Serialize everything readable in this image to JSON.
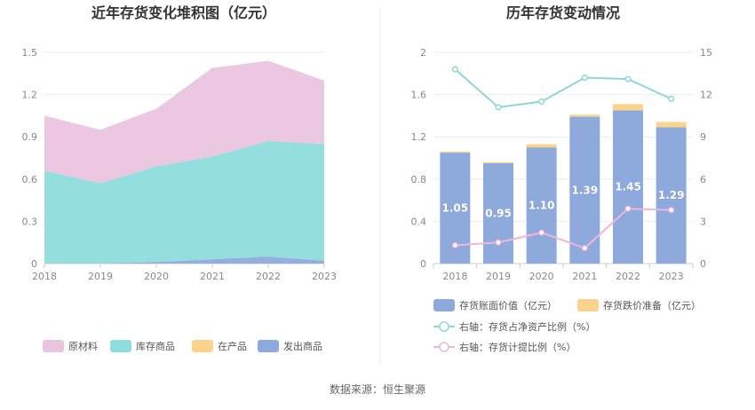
{
  "source": "数据来源：恒生聚源",
  "chart_data": [
    {
      "type": "area",
      "title": "近年存货变化堆积图（亿元）",
      "x": [
        "2018",
        "2019",
        "2020",
        "2021",
        "2022",
        "2023"
      ],
      "ylim": [
        0,
        1.5
      ],
      "yticks": [
        "0",
        "0.3",
        "0.6",
        "0.9",
        "1.2",
        "1.5"
      ],
      "stacked": true,
      "series": [
        {
          "name": "发出商品",
          "color": "#8eaadc",
          "values": [
            0.0,
            0.0,
            0.01,
            0.03,
            0.05,
            0.02
          ]
        },
        {
          "name": "在产品",
          "color": "#fbd38d",
          "values": [
            0.0,
            0.0,
            0.0,
            0.0,
            0.0,
            0.0
          ]
        },
        {
          "name": "库存商品",
          "color": "#8fdcdc",
          "values": [
            0.66,
            0.57,
            0.68,
            0.73,
            0.82,
            0.83
          ]
        },
        {
          "name": "原材料",
          "color": "#ebc4df",
          "values": [
            0.39,
            0.38,
            0.41,
            0.63,
            0.57,
            0.45
          ]
        }
      ],
      "legend": [
        {
          "name": "原材料",
          "color": "#ebc4df"
        },
        {
          "name": "库存商品",
          "color": "#8fdcdc"
        },
        {
          "name": "在产品",
          "color": "#fbd38d"
        },
        {
          "name": "发出商品",
          "color": "#8eaadc"
        }
      ],
      "legend_position": "bottom",
      "grid": true
    },
    {
      "type": "bar",
      "title": "历年存货变动情况",
      "x": [
        "2018",
        "2019",
        "2020",
        "2021",
        "2022",
        "2023"
      ],
      "ylim_left": [
        0,
        2
      ],
      "yticks_left": [
        "0",
        "0.4",
        "0.8",
        "1.2",
        "1.6",
        "2"
      ],
      "ylim_right": [
        0,
        15
      ],
      "yticks_right": [
        "0",
        "3",
        "6",
        "9",
        "12",
        "15"
      ],
      "bars": {
        "book_value": {
          "name": "存货账面价值（亿元）",
          "color": "#8eaadc",
          "values": [
            1.05,
            0.95,
            1.1,
            1.39,
            1.45,
            1.29
          ],
          "labels": [
            "1.05",
            "0.95",
            "1.10",
            "1.39",
            "1.45",
            "1.29"
          ]
        },
        "impairment": {
          "name": "存货跌价准备（亿元）",
          "color": "#fbd38d",
          "values": [
            0.01,
            0.01,
            0.03,
            0.02,
            0.06,
            0.05
          ]
        }
      },
      "lines": [
        {
          "name": "右轴：存货占净资产比例（%）",
          "color": "#8fd6da",
          "values": [
            13.8,
            11.1,
            11.5,
            13.2,
            13.1,
            11.7
          ]
        },
        {
          "name": "右轴：存货计提比例（%）",
          "color": "#f0b5d8",
          "values": [
            1.3,
            1.5,
            2.2,
            1.1,
            3.9,
            3.8
          ]
        }
      ],
      "legend_position": "bottom",
      "grid": true
    }
  ]
}
